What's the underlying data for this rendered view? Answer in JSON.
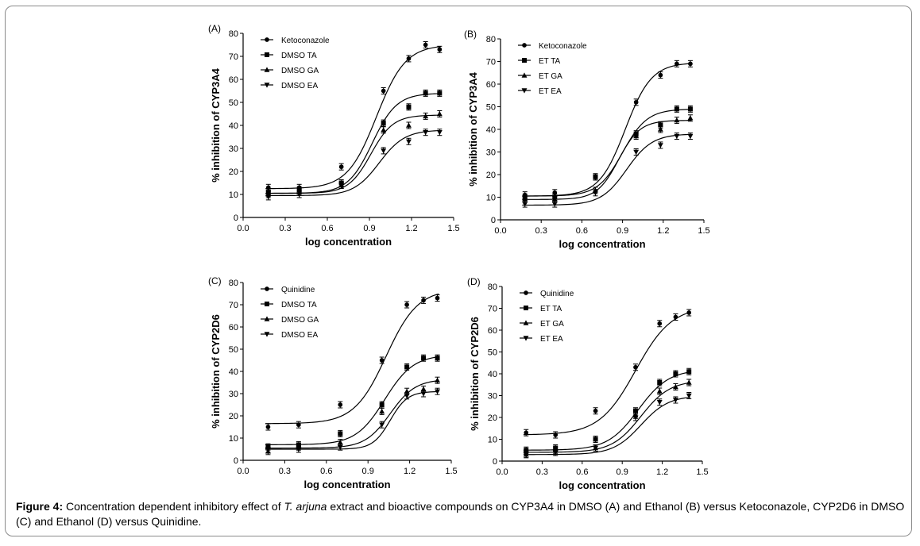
{
  "caption": {
    "label": "Figure 4:",
    "part1": " Concentration dependent inhibitory effect of ",
    "italic": "T. arjuna",
    "part2": " extract and bioactive compounds on CYP3A4 in DMSO (A) and Ethanol (B) versus Ketoconazole, CYP2D6 in DMSO (C) and Ethanol (D) versus Quinidine."
  },
  "chart_data": [
    {
      "type": "scatter",
      "panel": "(A)",
      "xlabel": "log concentration",
      "ylabel": "% inhibition of CYP3A4",
      "xlim": [
        0,
        1.5
      ],
      "ylim": [
        0,
        80
      ],
      "xticks": [
        "0.0",
        "0.3",
        "0.6",
        "0.9",
        "1.2",
        "1.5"
      ],
      "yticks": [
        "0",
        "10",
        "20",
        "30",
        "40",
        "50",
        "60",
        "70",
        "80"
      ],
      "legend_position": "top-left",
      "x": [
        0.18,
        0.4,
        0.7,
        1.0,
        1.18,
        1.3,
        1.4
      ],
      "series": [
        {
          "name": "Ketoconazole",
          "marker": "circle",
          "values": [
            13,
            13,
            22,
            55,
            69,
            75,
            73
          ]
        },
        {
          "name": "DMSO TA",
          "marker": "square",
          "values": [
            11,
            12,
            15,
            41,
            48,
            54,
            54
          ]
        },
        {
          "name": "DMSO GA",
          "marker": "triangle-up",
          "values": [
            10,
            11,
            14,
            38,
            40,
            44,
            45
          ]
        },
        {
          "name": "DMSO EA",
          "marker": "triangle-down",
          "values": [
            9,
            10,
            14,
            29,
            33,
            37,
            37
          ]
        }
      ],
      "fits": [
        {
          "bottom": 12.5,
          "top": 75,
          "logec50": 0.95,
          "hill": 4.2
        },
        {
          "bottom": 10.5,
          "top": 54,
          "logec50": 0.92,
          "hill": 5.0
        },
        {
          "bottom": 10.5,
          "top": 44.5,
          "logec50": 0.91,
          "hill": 5.5
        },
        {
          "bottom": 9.5,
          "top": 38,
          "logec50": 0.97,
          "hill": 4.8
        }
      ]
    },
    {
      "type": "scatter",
      "panel": "(B)",
      "xlabel": "log concentration",
      "ylabel": "% inhibition of CYP3A4",
      "xlim": [
        0,
        1.5
      ],
      "ylim": [
        0,
        80
      ],
      "xticks": [
        "0.0",
        "0.3",
        "0.6",
        "0.9",
        "1.2",
        "1.5"
      ],
      "yticks": [
        "0",
        "10",
        "20",
        "30",
        "40",
        "50",
        "60",
        "70",
        "80"
      ],
      "legend_position": "top-left",
      "x": [
        0.18,
        0.4,
        0.7,
        1.0,
        1.18,
        1.3,
        1.4
      ],
      "series": [
        {
          "name": "Ketoconazole",
          "marker": "circle",
          "values": [
            11,
            12,
            19,
            52,
            64,
            69,
            69
          ]
        },
        {
          "name": "ET TA",
          "marker": "square",
          "values": [
            10,
            10,
            19,
            38,
            42,
            49,
            49
          ]
        },
        {
          "name": "ET GA",
          "marker": "triangle-up",
          "values": [
            9,
            9,
            13,
            37,
            40,
            44,
            45
          ]
        },
        {
          "name": "ET EA",
          "marker": "triangle-down",
          "values": [
            7,
            7,
            12,
            30,
            33,
            37,
            37
          ]
        }
      ],
      "fits": [
        {
          "bottom": 10.5,
          "top": 69.5,
          "logec50": 0.92,
          "hill": 4.5
        },
        {
          "bottom": 10.5,
          "top": 49,
          "logec50": 0.9,
          "hill": 4.8
        },
        {
          "bottom": 9,
          "top": 44,
          "logec50": 0.87,
          "hill": 5.5
        },
        {
          "bottom": 6.5,
          "top": 38,
          "logec50": 0.93,
          "hill": 4.6
        }
      ]
    },
    {
      "type": "scatter",
      "panel": "(C)",
      "xlabel": "log concentration",
      "ylabel": "% inhibition of CYP2D6",
      "xlim": [
        0,
        1.5
      ],
      "ylim": [
        0,
        80
      ],
      "xticks": [
        "0.0",
        "0.3",
        "0.6",
        "0.9",
        "1.2",
        "1.5"
      ],
      "yticks": [
        "0",
        "10",
        "20",
        "30",
        "40",
        "50",
        "60",
        "70",
        "80"
      ],
      "legend_position": "top-left",
      "x": [
        0.18,
        0.4,
        0.7,
        1.0,
        1.18,
        1.3,
        1.4
      ],
      "series": [
        {
          "name": "Quinidine",
          "marker": "circle",
          "values": [
            15,
            16,
            25,
            45,
            70,
            72,
            73
          ]
        },
        {
          "name": "DMSO TA",
          "marker": "square",
          "values": [
            6,
            7,
            12,
            25,
            42,
            46,
            46
          ]
        },
        {
          "name": "DMSO GA",
          "marker": "triangle-up",
          "values": [
            4,
            6,
            8,
            22,
            31,
            32,
            36
          ]
        },
        {
          "name": "DMSO EA",
          "marker": "triangle-down",
          "values": [
            5,
            5,
            6,
            16,
            29,
            30,
            31
          ]
        }
      ],
      "fits": [
        {
          "bottom": 16.5,
          "top": 77,
          "logec50": 1.03,
          "hill": 3.8
        },
        {
          "bottom": 7,
          "top": 47.5,
          "logec50": 1.02,
          "hill": 4.2
        },
        {
          "bottom": 5.5,
          "top": 36.5,
          "logec50": 1.06,
          "hill": 4.8
        },
        {
          "bottom": 5,
          "top": 31,
          "logec50": 1.06,
          "hill": 7.0
        }
      ]
    },
    {
      "type": "scatter",
      "panel": "(D)",
      "xlabel": "log concentration",
      "ylabel": "% inhibition of CYP2D6",
      "xlim": [
        0,
        1.5
      ],
      "ylim": [
        0,
        80
      ],
      "xticks": [
        "0.0",
        "0.3",
        "0.6",
        "0.9",
        "1.2",
        "1.5"
      ],
      "yticks": [
        "0",
        "10",
        "20",
        "30",
        "40",
        "50",
        "60",
        "70",
        "80"
      ],
      "legend_position": "top-left",
      "x": [
        0.18,
        0.4,
        0.7,
        1.0,
        1.18,
        1.3,
        1.4
      ],
      "series": [
        {
          "name": "Quinidine",
          "marker": "circle",
          "values": [
            13,
            12,
            23,
            43,
            63,
            66,
            68
          ]
        },
        {
          "name": "ET TA",
          "marker": "square",
          "values": [
            5,
            6,
            10,
            23,
            36,
            40,
            41
          ]
        },
        {
          "name": "ET GA",
          "marker": "triangle-up",
          "values": [
            3,
            5,
            6,
            21,
            32,
            34,
            36
          ]
        },
        {
          "name": "ET EA",
          "marker": "triangle-down",
          "values": [
            3,
            4,
            6,
            20,
            27,
            28,
            30
          ]
        }
      ],
      "fits": [
        {
          "bottom": 12,
          "top": 71,
          "logec50": 1.0,
          "hill": 3.2
        },
        {
          "bottom": 5,
          "top": 42,
          "logec50": 1.02,
          "hill": 3.8
        },
        {
          "bottom": 4,
          "top": 37,
          "logec50": 1.04,
          "hill": 4.0
        },
        {
          "bottom": 3,
          "top": 30,
          "logec50": 1.04,
          "hill": 4.2
        }
      ]
    }
  ]
}
